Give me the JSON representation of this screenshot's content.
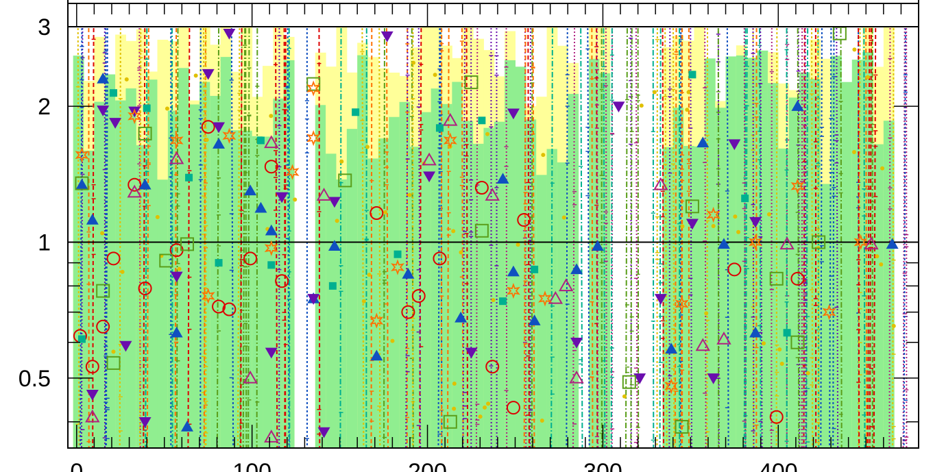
{
  "chart_data": {
    "type": "scatter",
    "title": "",
    "xlabel": "",
    "ylabel": "",
    "xlim": [
      -5,
      480
    ],
    "ylim": [
      0.35,
      3.0
    ],
    "y_scale": "log",
    "x_ticks": [
      "0",
      "100",
      "200",
      "300",
      "400"
    ],
    "y_ticks": [
      "0.5",
      "1",
      "2",
      "3"
    ],
    "reference_line_y": 1,
    "grid": false,
    "legend": "none",
    "band_colors": {
      "inner": "#90ee90",
      "outer": "#ffff99"
    },
    "series": [
      {
        "marker": "circle-open",
        "color": "#dd0000",
        "points": [
          [
            2,
            0.62
          ],
          [
            9,
            0.53
          ],
          [
            15,
            0.65
          ],
          [
            21,
            0.92
          ],
          [
            33,
            1.34
          ],
          [
            39,
            0.79
          ],
          [
            57,
            0.96
          ],
          [
            75,
            1.8
          ],
          [
            81,
            0.72
          ],
          [
            87,
            0.71
          ],
          [
            99,
            0.92
          ],
          [
            111,
            1.47
          ],
          [
            117,
            0.82
          ],
          [
            171,
            1.16
          ],
          [
            189,
            0.7
          ],
          [
            195,
            0.76
          ],
          [
            207,
            0.92
          ],
          [
            231,
            1.32
          ],
          [
            237,
            0.53
          ],
          [
            249,
            0.43
          ],
          [
            255,
            1.12
          ],
          [
            375,
            0.87
          ],
          [
            399,
            0.41
          ],
          [
            411,
            0.83
          ]
        ]
      },
      {
        "marker": "square-filled",
        "color": "#00b090",
        "points": [
          [
            3,
            0.61
          ],
          [
            21,
            2.14
          ],
          [
            40,
            1.98
          ],
          [
            64,
            1.39
          ],
          [
            81,
            0.9
          ],
          [
            105,
            1.68
          ],
          [
            111,
            0.89
          ],
          [
            146,
            0.8
          ],
          [
            159,
            1.94
          ],
          [
            183,
            0.94
          ],
          [
            207,
            1.79
          ],
          [
            231,
            1.86
          ],
          [
            243,
            0.74
          ],
          [
            261,
            0.87
          ],
          [
            351,
            2.35
          ],
          [
            381,
            1.25
          ],
          [
            405,
            0.63
          ]
        ]
      },
      {
        "marker": "triangle-up-filled",
        "color": "#1050c0",
        "points": [
          [
            3,
            1.34
          ],
          [
            9,
            1.12
          ],
          [
            15,
            2.3
          ],
          [
            39,
            1.34
          ],
          [
            57,
            0.63
          ],
          [
            63,
            0.39
          ],
          [
            81,
            1.65
          ],
          [
            99,
            1.3
          ],
          [
            105,
            1.19
          ],
          [
            111,
            1.06
          ],
          [
            135,
            0.75
          ],
          [
            147,
            0.98
          ],
          [
            171,
            0.56
          ],
          [
            189,
            0.85
          ],
          [
            219,
            0.68
          ],
          [
            243,
            1.38
          ],
          [
            249,
            0.86
          ],
          [
            261,
            0.67
          ],
          [
            285,
            0.87
          ],
          [
            297,
            0.98
          ],
          [
            339,
            0.58
          ],
          [
            357,
            1.66
          ],
          [
            369,
            0.99
          ],
          [
            387,
            0.63
          ],
          [
            411,
            2.0
          ],
          [
            465,
            0.99
          ]
        ]
      },
      {
        "marker": "triangle-down-filled",
        "color": "#6a0dad",
        "points": [
          [
            9,
            0.46
          ],
          [
            15,
            1.96
          ],
          [
            22,
            1.84
          ],
          [
            28,
            0.59
          ],
          [
            33,
            1.95
          ],
          [
            39,
            0.4
          ],
          [
            57,
            0.84
          ],
          [
            75,
            2.36
          ],
          [
            81,
            1.8
          ],
          [
            87,
            2.9
          ],
          [
            111,
            0.57
          ],
          [
            117,
            1.26
          ],
          [
            135,
            0.75
          ],
          [
            141,
            0.38
          ],
          [
            147,
            1.23
          ],
          [
            177,
            2.86
          ],
          [
            201,
            1.4
          ],
          [
            225,
            0.57
          ],
          [
            249,
            1.93
          ],
          [
            285,
            0.6
          ],
          [
            309,
            2.0
          ],
          [
            321,
            0.5
          ],
          [
            333,
            0.75
          ],
          [
            351,
            1.1
          ],
          [
            363,
            0.5
          ],
          [
            375,
            1.65
          ],
          [
            387,
            1.11
          ]
        ]
      },
      {
        "marker": "triangle-up-open",
        "color": "#b02080",
        "points": [
          [
            9,
            0.41
          ],
          [
            33,
            1.29
          ],
          [
            57,
            1.53
          ],
          [
            111,
            1.66
          ],
          [
            141,
            1.27
          ],
          [
            201,
            1.52
          ],
          [
            213,
            1.86
          ],
          [
            237,
            1.27
          ],
          [
            273,
            0.75
          ],
          [
            279,
            0.8
          ],
          [
            285,
            0.5
          ],
          [
            333,
            1.34
          ],
          [
            357,
            0.59
          ],
          [
            369,
            0.61
          ],
          [
            405,
            0.99
          ],
          [
            453,
            0.99
          ],
          [
            99,
            0.5
          ],
          [
            111,
            0.37
          ]
        ]
      },
      {
        "marker": "square-open",
        "color": "#5a9e1a",
        "points": [
          [
            3,
            1.35
          ],
          [
            15,
            0.78
          ],
          [
            21,
            0.54
          ],
          [
            39,
            1.74
          ],
          [
            51,
            0.91
          ],
          [
            63,
            0.99
          ],
          [
            135,
            2.24
          ],
          [
            153,
            1.37
          ],
          [
            213,
            0.4
          ],
          [
            225,
            2.26
          ],
          [
            231,
            1.06
          ],
          [
            315,
            0.49
          ],
          [
            345,
            0.39
          ],
          [
            351,
            1.2
          ],
          [
            399,
            0.83
          ],
          [
            411,
            0.6
          ],
          [
            423,
            1.0
          ],
          [
            435,
            2.9
          ]
        ]
      },
      {
        "marker": "star",
        "color": "#ff7000",
        "points": [
          [
            3,
            1.56
          ],
          [
            33,
            1.9
          ],
          [
            57,
            1.68
          ],
          [
            75,
            0.76
          ],
          [
            87,
            1.72
          ],
          [
            111,
            0.97
          ],
          [
            123,
            1.43
          ],
          [
            135,
            2.19
          ],
          [
            135,
            1.7
          ],
          [
            171,
            0.67
          ],
          [
            183,
            0.88
          ],
          [
            213,
            1.68
          ],
          [
            249,
            0.78
          ],
          [
            267,
            0.75
          ],
          [
            339,
            0.48
          ],
          [
            345,
            0.73
          ],
          [
            363,
            1.15
          ],
          [
            387,
            1.0
          ],
          [
            411,
            1.33
          ],
          [
            429,
            0.7
          ],
          [
            447,
            1.0
          ]
        ]
      }
    ]
  }
}
